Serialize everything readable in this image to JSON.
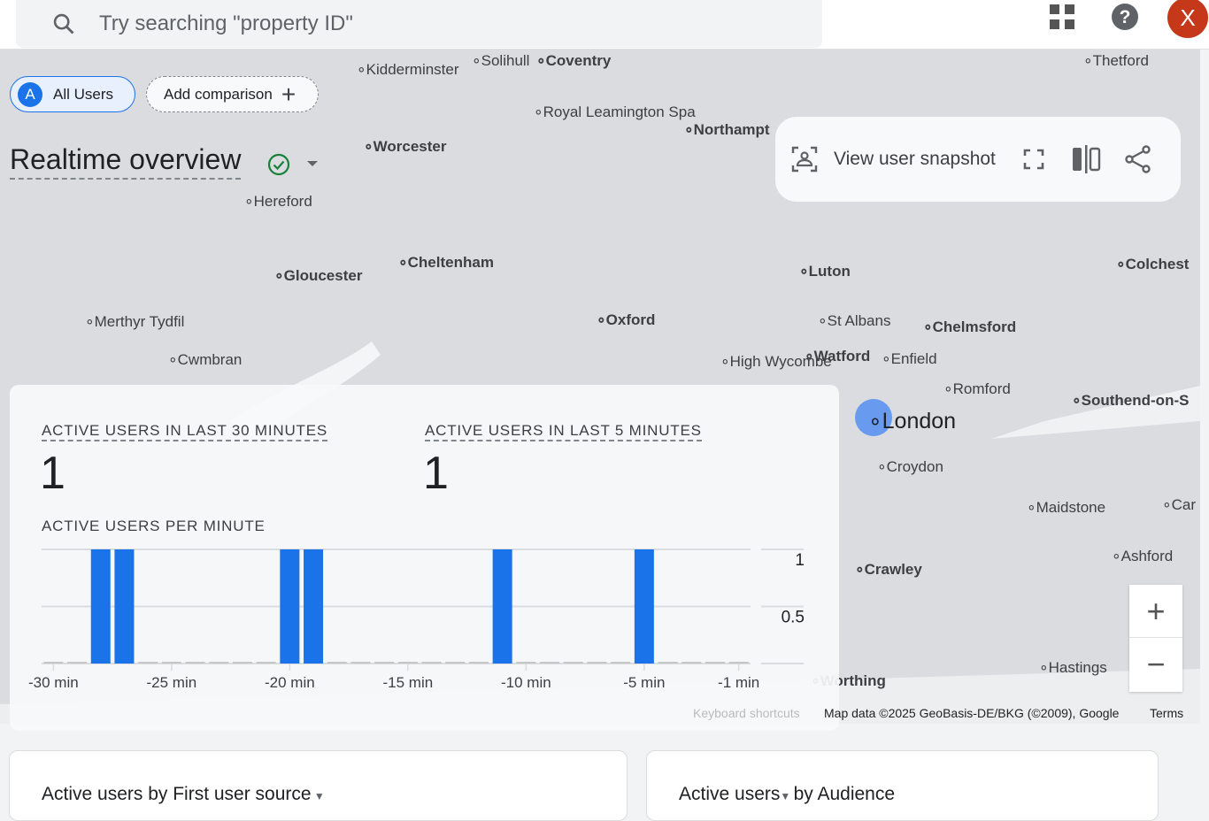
{
  "topbar": {
    "search_placeholder": "Try searching \"property ID\"",
    "avatar_letter": "X",
    "avatar_color": "#c5391a"
  },
  "comparisons": {
    "segment_letter": "A",
    "segment_label": "All Users",
    "add_label": "Add comparison"
  },
  "page_title": "Realtime overview",
  "toolbar": {
    "snapshot_label": "View user snapshot"
  },
  "metrics": [
    {
      "label": "ACTIVE USERS IN LAST 30 MINUTES",
      "value": "1"
    },
    {
      "label": "ACTIVE USERS IN LAST 5 MINUTES",
      "value": "1"
    }
  ],
  "chart_data": {
    "type": "bar",
    "title": "ACTIVE USERS PER MINUTE",
    "x": [
      -30,
      -29,
      -28,
      -27,
      -26,
      -25,
      -24,
      -23,
      -22,
      -21,
      -20,
      -19,
      -18,
      -17,
      -16,
      -15,
      -14,
      -13,
      -12,
      -11,
      -10,
      -9,
      -8,
      -7,
      -6,
      -5,
      -4,
      -3,
      -2,
      -1
    ],
    "values": [
      0,
      0,
      1,
      1,
      0,
      0,
      0,
      0,
      0,
      0,
      1,
      1,
      0,
      0,
      0,
      0,
      0,
      0,
      0,
      1,
      0,
      0,
      0,
      0,
      0,
      1,
      0,
      0,
      0,
      0
    ],
    "x_ticks": [
      "-30 min",
      "-25 min",
      "-20 min",
      "-15 min",
      "-10 min",
      "-5 min",
      "-1 min"
    ],
    "y_ticks": [
      "1",
      "0.5"
    ],
    "ylim": [
      0,
      1
    ],
    "grid": true,
    "color": "#1a73e8"
  },
  "map": {
    "cities": [
      {
        "n": "Kidderminster",
        "x": 403,
        "y": 80
      },
      {
        "n": "Solihull",
        "x": 533,
        "y": 70
      },
      {
        "n": "Coventry",
        "x": 606,
        "y": 70,
        "b": 1
      },
      {
        "n": "Thetford",
        "x": 1224,
        "y": 70
      },
      {
        "n": "Royal Leamington Spa",
        "x": 603,
        "y": 128
      },
      {
        "n": "Northampt",
        "x": 773,
        "y": 148,
        "b": 1
      },
      {
        "n": "Worcester",
        "x": 411,
        "y": 167,
        "b": 1
      },
      {
        "n": "Hereford",
        "x": 276,
        "y": 229
      },
      {
        "n": "Cheltenham",
        "x": 450,
        "y": 298,
        "b": 1
      },
      {
        "n": "Gloucester",
        "x": 310,
        "y": 313,
        "b": 1
      },
      {
        "n": "Luton",
        "x": 903,
        "y": 308,
        "b": 1
      },
      {
        "n": "Colchest",
        "x": 1261,
        "y": 300,
        "b": 1
      },
      {
        "n": "Merthyr Tydfil",
        "x": 96,
        "y": 365
      },
      {
        "n": "Oxford",
        "x": 674,
        "y": 363,
        "b": 1
      },
      {
        "n": "St Albans",
        "x": 924,
        "y": 364
      },
      {
        "n": "Chelmsford",
        "x": 1043,
        "y": 371,
        "b": 1
      },
      {
        "n": "Cwmbran",
        "x": 190,
        "y": 408
      },
      {
        "n": "Watford",
        "x": 909,
        "y": 404,
        "b": 1
      },
      {
        "n": "Enfield",
        "x": 996,
        "y": 407
      },
      {
        "n": "High Wycombe",
        "x": 814,
        "y": 410
      },
      {
        "n": "Romford",
        "x": 1066,
        "y": 441
      },
      {
        "n": "Southend-on-S",
        "x": 1211,
        "y": 454,
        "b": 1
      },
      {
        "n": "London",
        "x": 981,
        "y": 472,
        "big": 1
      },
      {
        "n": "Croydon",
        "x": 991,
        "y": 529
      },
      {
        "n": "Maidstone",
        "x": 1160,
        "y": 575
      },
      {
        "n": "Car",
        "x": 1313,
        "y": 572
      },
      {
        "n": "Ashford",
        "x": 1256,
        "y": 630
      },
      {
        "n": "Crawley",
        "x": 966,
        "y": 645,
        "b": 1
      },
      {
        "n": "Hastings",
        "x": 1174,
        "y": 756
      },
      {
        "n": "Worthing",
        "x": 916,
        "y": 771,
        "b": 1
      }
    ],
    "keyboard_shortcuts": "Keyboard shortcuts",
    "attribution": "Map data ©2025 GeoBasis-DE/BKG (©2009), Google",
    "terms": "Terms"
  },
  "cards": [
    {
      "title": "Active users by First user source"
    },
    {
      "title_a": "Active users",
      "title_b": "by Audience"
    }
  ]
}
